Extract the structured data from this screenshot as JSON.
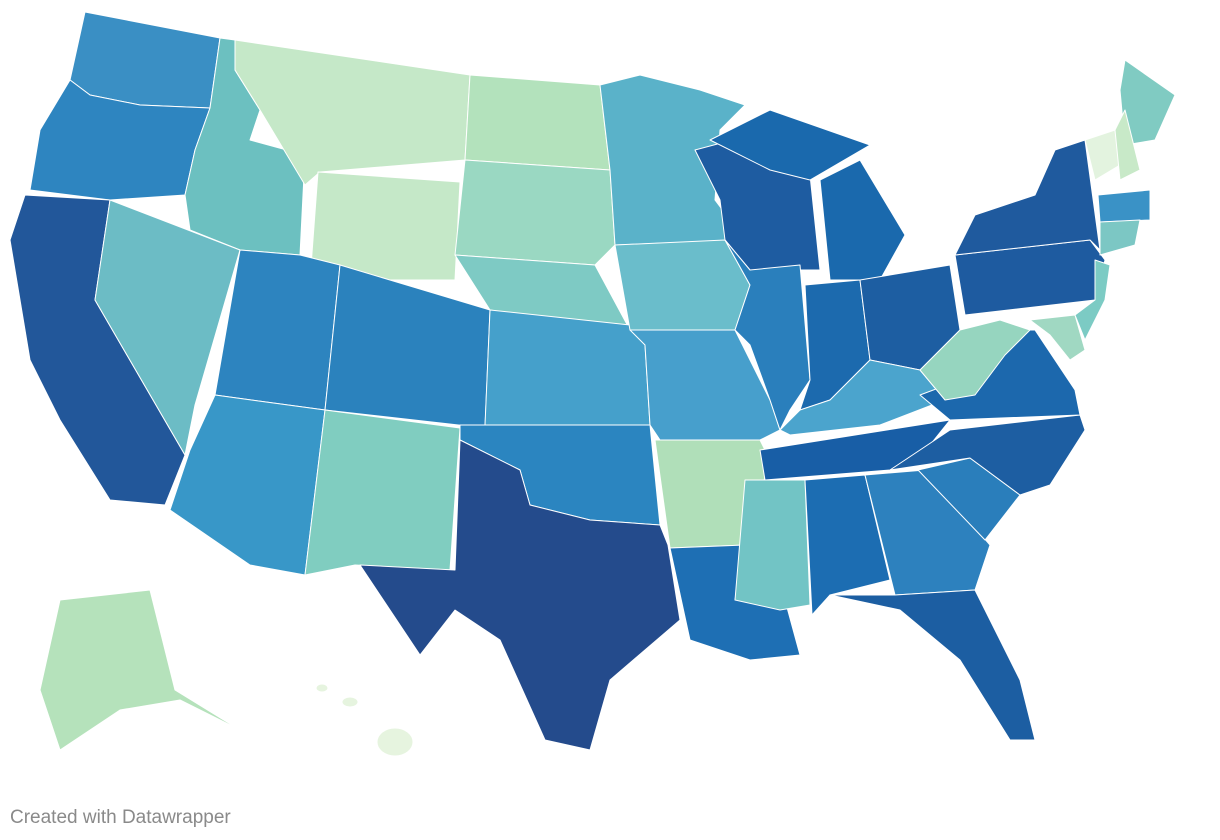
{
  "footer": {
    "credit": "Created with Datawrapper"
  }
}
